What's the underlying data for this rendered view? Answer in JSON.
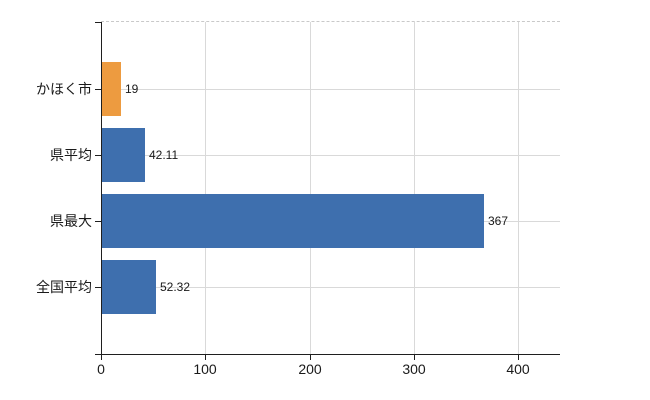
{
  "chart_data": {
    "type": "bar",
    "orientation": "horizontal",
    "title": "",
    "categories": [
      "かほく市",
      "県平均",
      "県最大",
      "全国平均"
    ],
    "series": [
      {
        "name": "values",
        "values": [
          19,
          42.11,
          367,
          52.32
        ]
      }
    ],
    "value_labels": [
      "19",
      "42.11",
      "367",
      "52.32"
    ],
    "bar_colors": [
      "#ED9B40",
      "#3E6FAE",
      "#3E6FAE",
      "#3E6FAE"
    ],
    "xlim": [
      0,
      440
    ],
    "x_ticks": [
      0,
      100,
      200,
      300,
      400
    ],
    "x_tick_labels": [
      "0",
      "100",
      "200",
      "300",
      "400"
    ],
    "grid": {
      "vertical_at_ticks": true,
      "horizontal_at_category_centers": true,
      "top_border_dashed": true
    },
    "legend": {
      "visible": false
    }
  },
  "colors": {
    "background": "#ffffff",
    "axis": "#1f1f1f",
    "gridline": "#d9d9d9",
    "top_border": "#c9c9c9",
    "bar_orange": "#ED9B40",
    "bar_blue": "#3E6FAE",
    "text": "#1a1a1a"
  }
}
